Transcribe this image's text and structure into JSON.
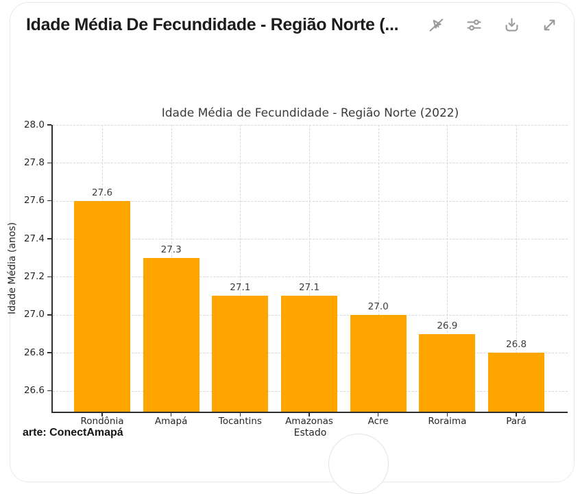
{
  "window": {
    "title": "Idade Média De Fecundidade - Região Norte (...",
    "toolbar_icons": [
      "pointer-off",
      "sliders",
      "download",
      "expand"
    ]
  },
  "chart_data": {
    "type": "bar",
    "title": "Idade Média de Fecundidade - Região Norte (2022)",
    "xlabel": "Estado",
    "ylabel": "Idade Média (anos)",
    "categories": [
      "Rondônia",
      "Amapá",
      "Tocantins",
      "Amazonas",
      "Acre",
      "Roraima",
      "Pará"
    ],
    "values": [
      27.6,
      27.3,
      27.1,
      27.1,
      27.0,
      26.9,
      26.8
    ],
    "bar_value_labels": [
      "27.6",
      "27.3",
      "27.1",
      "27.1",
      "27.0",
      "26.9",
      "26.8"
    ],
    "ytick_values": [
      28.0,
      27.8,
      27.6,
      27.4,
      27.2,
      27.0,
      26.8,
      26.6
    ],
    "ytick_labels": [
      "28.0",
      "27.8",
      "27.6",
      "27.4",
      "27.2",
      "27.0",
      "26.8",
      "26.6"
    ],
    "ylim": [
      26.49,
      28.0
    ],
    "bar_color": "#FFA500",
    "grid": "dashed, horizontal and vertical",
    "legend": "none"
  },
  "footer": {
    "credit": "arte: ConectAmapá"
  }
}
